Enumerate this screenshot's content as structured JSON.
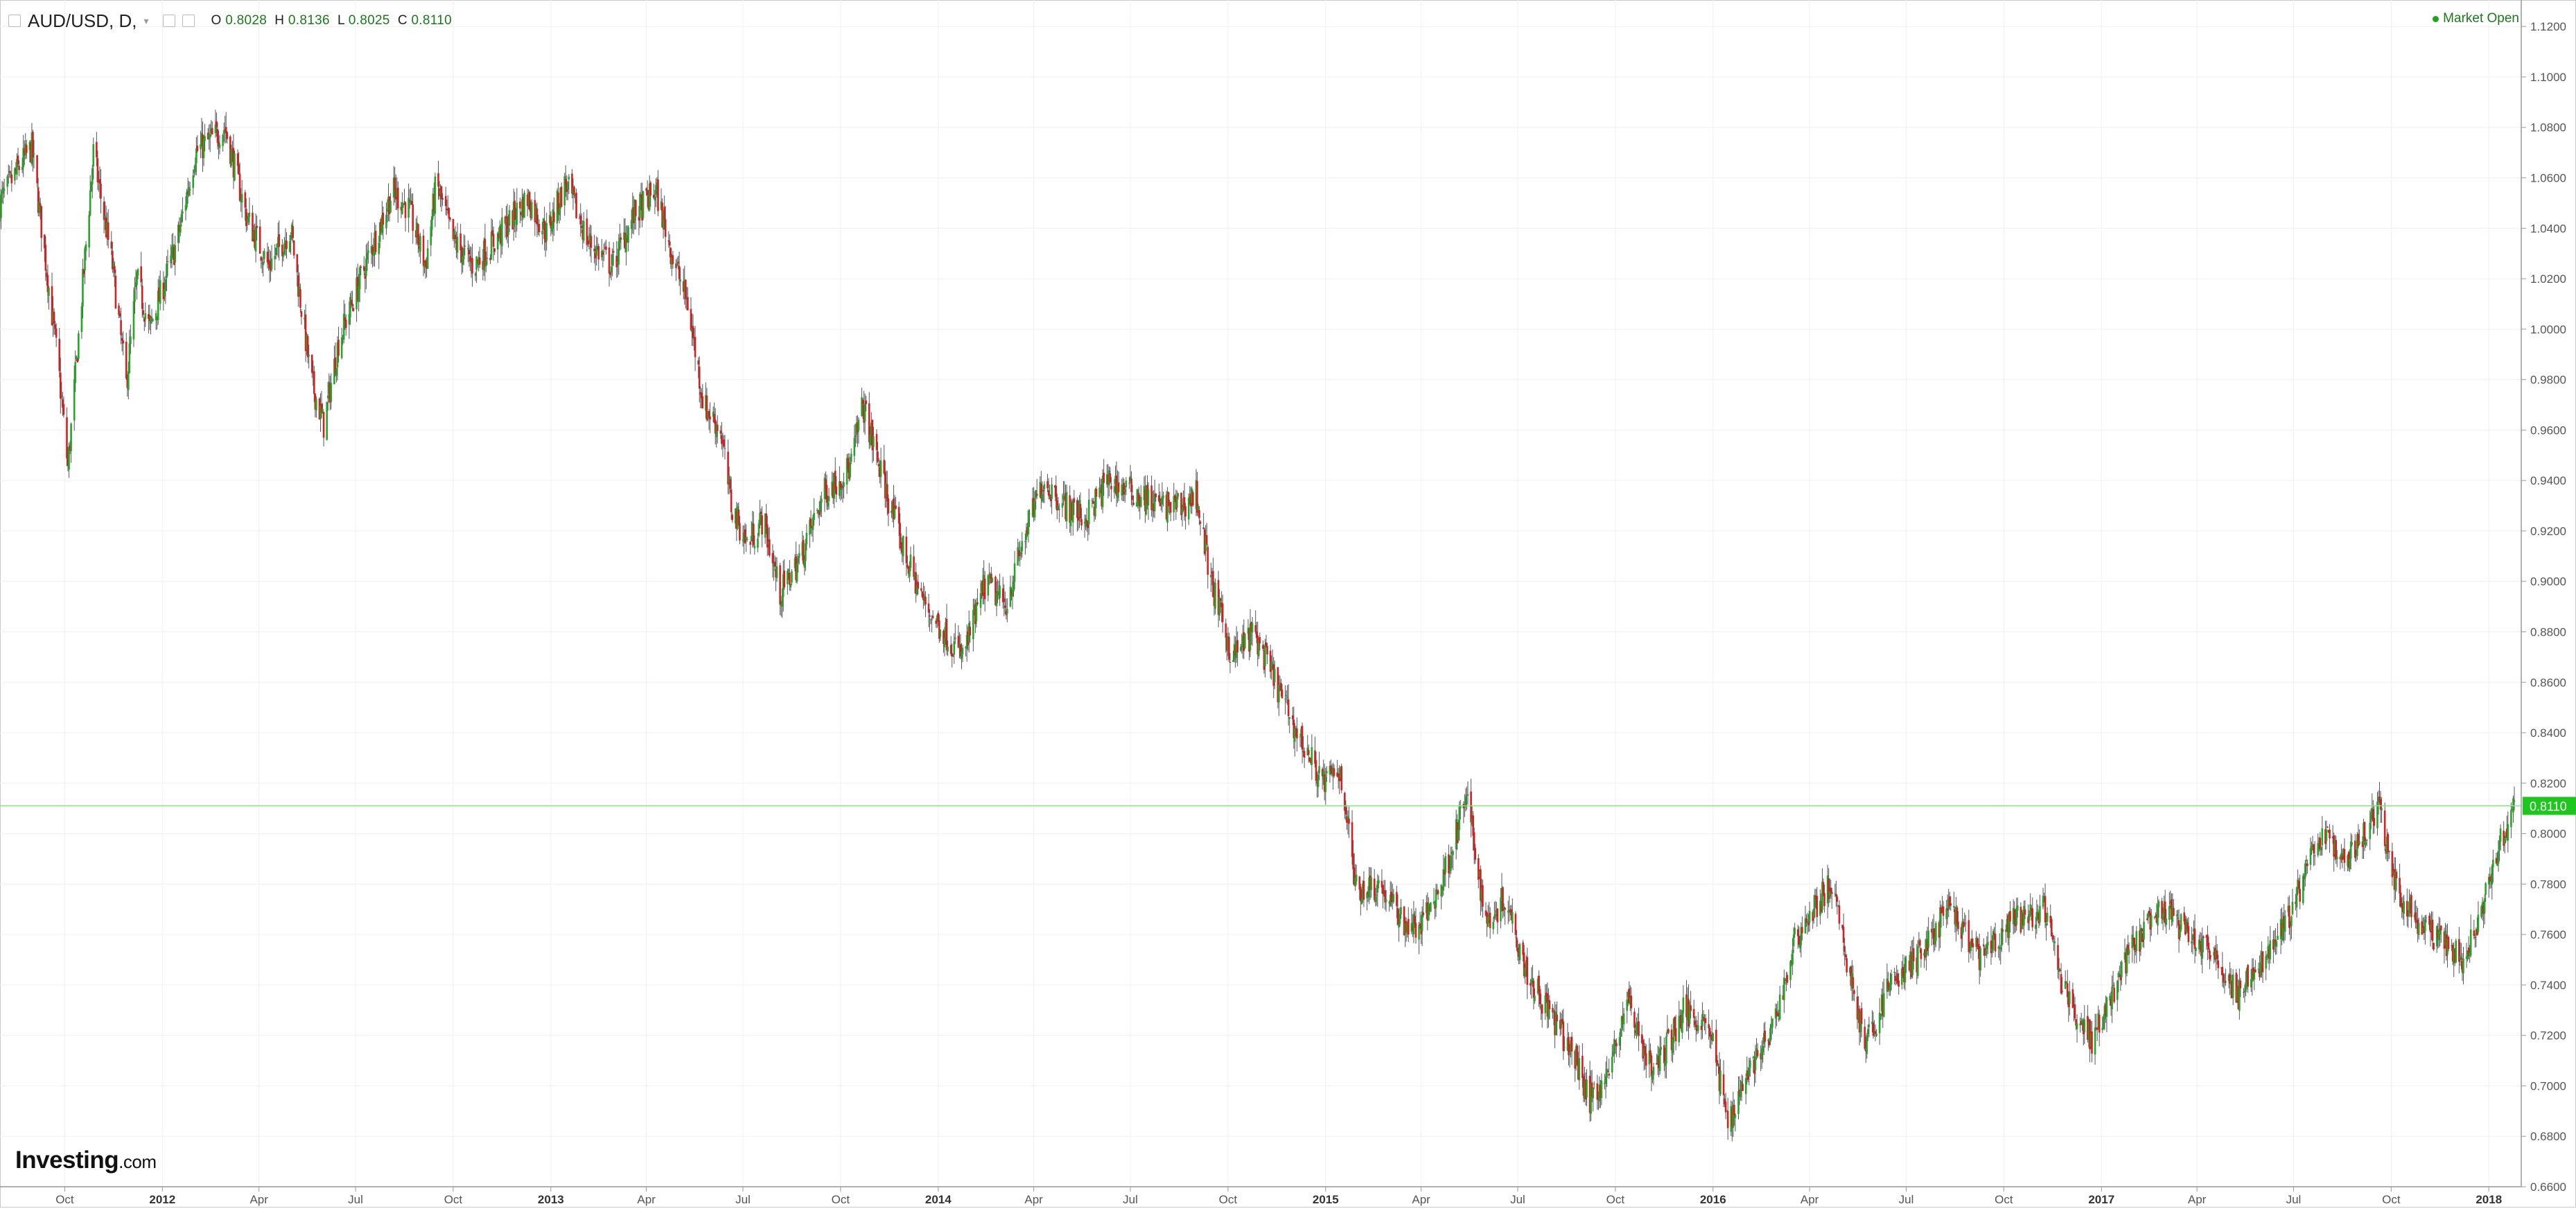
{
  "header": {
    "symbol": "AUD/USD, D,",
    "open_label": "O",
    "open": "0.8028",
    "high_label": "H",
    "high": "0.8136",
    "low_label": "L",
    "low": "0.8025",
    "close_label": "C",
    "close": "0.8110"
  },
  "market_status": "Market Open",
  "logo": {
    "main": "Investing",
    "suffix": ".com"
  },
  "colors": {
    "up": "#26a626",
    "down": "#d42020",
    "wick": "#555555",
    "price_line": "#7fe37f",
    "price_tag_bg": "#1ec71e",
    "grid": "#f0f0f0"
  },
  "chart_data": {
    "type": "candlestick",
    "instrument": "AUD/USD",
    "timeframe": "D",
    "ylim": [
      0.66,
      1.125
    ],
    "y_ticks": [
      "1.1200",
      "1.1000",
      "1.0800",
      "1.0600",
      "1.0400",
      "1.0200",
      "1.0000",
      "0.9800",
      "0.9600",
      "0.9400",
      "0.9200",
      "0.9000",
      "0.8800",
      "0.8600",
      "0.8400",
      "0.8200",
      "0.8000",
      "0.7800",
      "0.7600",
      "0.7400",
      "0.7200",
      "0.7000",
      "0.6800",
      "0.6600"
    ],
    "x_ticks": [
      {
        "label": "Oct",
        "date": "2011-10-01",
        "bold": false
      },
      {
        "label": "2012",
        "date": "2012-01-01",
        "bold": true
      },
      {
        "label": "Apr",
        "date": "2012-04-01",
        "bold": false
      },
      {
        "label": "Jul",
        "date": "2012-07-01",
        "bold": false
      },
      {
        "label": "Oct",
        "date": "2012-10-01",
        "bold": false
      },
      {
        "label": "2013",
        "date": "2013-01-01",
        "bold": true
      },
      {
        "label": "Apr",
        "date": "2013-04-01",
        "bold": false
      },
      {
        "label": "Jul",
        "date": "2013-07-01",
        "bold": false
      },
      {
        "label": "Oct",
        "date": "2013-10-01",
        "bold": false
      },
      {
        "label": "2014",
        "date": "2014-01-01",
        "bold": true
      },
      {
        "label": "Apr",
        "date": "2014-04-01",
        "bold": false
      },
      {
        "label": "Jul",
        "date": "2014-07-01",
        "bold": false
      },
      {
        "label": "Oct",
        "date": "2014-10-01",
        "bold": false
      },
      {
        "label": "2015",
        "date": "2015-01-01",
        "bold": true
      },
      {
        "label": "Apr",
        "date": "2015-04-01",
        "bold": false
      },
      {
        "label": "Jul",
        "date": "2015-07-01",
        "bold": false
      },
      {
        "label": "Oct",
        "date": "2015-10-01",
        "bold": false
      },
      {
        "label": "2016",
        "date": "2016-01-01",
        "bold": true
      },
      {
        "label": "Apr",
        "date": "2016-04-01",
        "bold": false
      },
      {
        "label": "Jul",
        "date": "2016-07-01",
        "bold": false
      },
      {
        "label": "Oct",
        "date": "2016-10-01",
        "bold": false
      },
      {
        "label": "2017",
        "date": "2017-01-01",
        "bold": true
      },
      {
        "label": "Apr",
        "date": "2017-04-01",
        "bold": false
      },
      {
        "label": "Jul",
        "date": "2017-07-01",
        "bold": false
      },
      {
        "label": "Oct",
        "date": "2017-10-01",
        "bold": false
      },
      {
        "label": "2018",
        "date": "2018-01-01",
        "bold": true
      }
    ],
    "x_range": [
      "2011-08-01",
      "2018-01-25"
    ],
    "last_price": 0.811,
    "last_price_label": "0.8110",
    "grid": true,
    "price_path": [
      [
        "2011-08-01",
        1.05
      ],
      [
        "2011-08-20",
        1.065
      ],
      [
        "2011-08-31",
        1.072
      ],
      [
        "2011-09-15",
        1.02
      ],
      [
        "2011-09-25",
        0.985
      ],
      [
        "2011-10-04",
        0.945
      ],
      [
        "2011-10-28",
        1.07
      ],
      [
        "2011-11-15",
        1.025
      ],
      [
        "2011-11-28",
        0.978
      ],
      [
        "2011-12-08",
        1.02
      ],
      [
        "2011-12-20",
        1.0
      ],
      [
        "2012-01-15",
        1.035
      ],
      [
        "2012-02-01",
        1.07
      ],
      [
        "2012-02-29",
        1.08
      ],
      [
        "2012-03-20",
        1.045
      ],
      [
        "2012-04-10",
        1.025
      ],
      [
        "2012-05-01",
        1.04
      ],
      [
        "2012-05-20",
        0.98
      ],
      [
        "2012-06-01",
        0.962
      ],
      [
        "2012-06-15",
        0.995
      ],
      [
        "2012-07-10",
        1.025
      ],
      [
        "2012-08-05",
        1.055
      ],
      [
        "2012-08-20",
        1.048
      ],
      [
        "2012-09-05",
        1.025
      ],
      [
        "2012-09-15",
        1.058
      ],
      [
        "2012-10-01",
        1.035
      ],
      [
        "2012-10-20",
        1.025
      ],
      [
        "2012-11-15",
        1.038
      ],
      [
        "2012-12-10",
        1.052
      ],
      [
        "2012-12-28",
        1.038
      ],
      [
        "2013-01-15",
        1.058
      ],
      [
        "2013-02-05",
        1.035
      ],
      [
        "2013-02-28",
        1.025
      ],
      [
        "2013-03-20",
        1.045
      ],
      [
        "2013-04-10",
        1.055
      ],
      [
        "2013-04-25",
        1.03
      ],
      [
        "2013-05-10",
        1.01
      ],
      [
        "2013-05-25",
        0.97
      ],
      [
        "2013-06-10",
        0.96
      ],
      [
        "2013-06-20",
        0.93
      ],
      [
        "2013-07-05",
        0.915
      ],
      [
        "2013-07-20",
        0.925
      ],
      [
        "2013-08-05",
        0.895
      ],
      [
        "2013-08-25",
        0.91
      ],
      [
        "2013-09-15",
        0.935
      ],
      [
        "2013-10-10",
        0.945
      ],
      [
        "2013-10-22",
        0.97
      ],
      [
        "2013-11-10",
        0.94
      ],
      [
        "2013-12-01",
        0.91
      ],
      [
        "2013-12-20",
        0.89
      ],
      [
        "2014-01-24",
        0.87
      ],
      [
        "2014-02-15",
        0.9
      ],
      [
        "2014-03-05",
        0.89
      ],
      [
        "2014-03-25",
        0.92
      ],
      [
        "2014-04-10",
        0.94
      ],
      [
        "2014-05-01",
        0.93
      ],
      [
        "2014-05-20",
        0.925
      ],
      [
        "2014-06-10",
        0.94
      ],
      [
        "2014-07-05",
        0.935
      ],
      [
        "2014-07-30",
        0.93
      ],
      [
        "2014-08-20",
        0.93
      ],
      [
        "2014-09-01",
        0.935
      ],
      [
        "2014-09-15",
        0.9
      ],
      [
        "2014-10-05",
        0.87
      ],
      [
        "2014-10-25",
        0.88
      ],
      [
        "2014-11-15",
        0.86
      ],
      [
        "2014-12-05",
        0.84
      ],
      [
        "2014-12-30",
        0.82
      ],
      [
        "2015-01-15",
        0.825
      ],
      [
        "2015-01-30",
        0.778
      ],
      [
        "2015-02-20",
        0.78
      ],
      [
        "2015-03-15",
        0.765
      ],
      [
        "2015-03-30",
        0.762
      ],
      [
        "2015-04-20",
        0.78
      ],
      [
        "2015-05-14",
        0.815
      ],
      [
        "2015-06-01",
        0.765
      ],
      [
        "2015-06-20",
        0.775
      ],
      [
        "2015-07-10",
        0.745
      ],
      [
        "2015-07-30",
        0.73
      ],
      [
        "2015-08-25",
        0.71
      ],
      [
        "2015-09-07",
        0.695
      ],
      [
        "2015-09-25",
        0.705
      ],
      [
        "2015-10-12",
        0.735
      ],
      [
        "2015-11-05",
        0.705
      ],
      [
        "2015-12-05",
        0.73
      ],
      [
        "2015-12-28",
        0.725
      ],
      [
        "2016-01-15",
        0.685
      ],
      [
        "2016-02-01",
        0.705
      ],
      [
        "2016-02-25",
        0.72
      ],
      [
        "2016-03-20",
        0.76
      ],
      [
        "2016-04-21",
        0.78
      ],
      [
        "2016-05-24",
        0.715
      ],
      [
        "2016-06-15",
        0.74
      ],
      [
        "2016-07-10",
        0.75
      ],
      [
        "2016-08-10",
        0.77
      ],
      [
        "2016-09-10",
        0.75
      ],
      [
        "2016-10-10",
        0.765
      ],
      [
        "2016-11-08",
        0.77
      ],
      [
        "2016-11-25",
        0.74
      ],
      [
        "2016-12-23",
        0.718
      ],
      [
        "2017-01-30",
        0.755
      ],
      [
        "2017-02-28",
        0.77
      ],
      [
        "2017-03-25",
        0.76
      ],
      [
        "2017-04-20",
        0.75
      ],
      [
        "2017-05-09",
        0.735
      ],
      [
        "2017-06-10",
        0.755
      ],
      [
        "2017-06-30",
        0.77
      ],
      [
        "2017-07-25",
        0.8
      ],
      [
        "2017-08-20",
        0.79
      ],
      [
        "2017-09-20",
        0.81
      ],
      [
        "2017-10-05",
        0.78
      ],
      [
        "2017-10-25",
        0.765
      ],
      [
        "2017-11-10",
        0.76
      ],
      [
        "2017-12-08",
        0.75
      ],
      [
        "2017-12-25",
        0.77
      ],
      [
        "2018-01-10",
        0.795
      ],
      [
        "2018-01-25",
        0.811
      ]
    ]
  }
}
